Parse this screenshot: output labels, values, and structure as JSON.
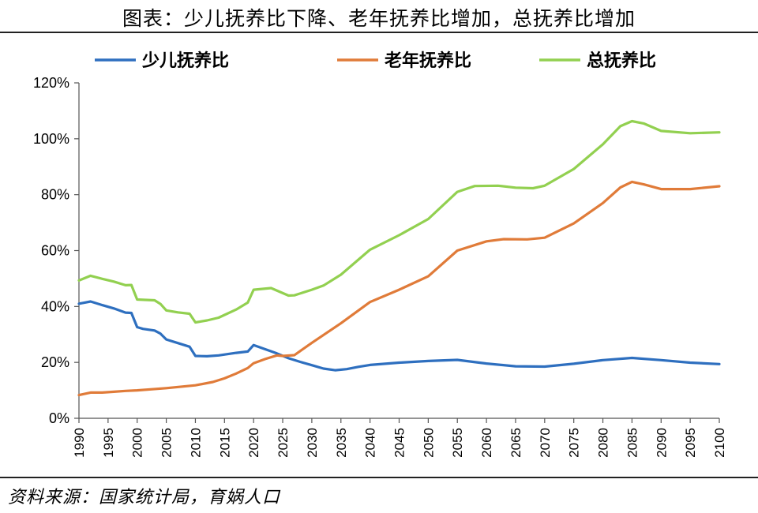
{
  "header": {
    "title": "图表：少儿抚养比下降、老年抚养比增加，总抚养比增加"
  },
  "footer": {
    "source": "资料来源：国家统计局，育娲人口"
  },
  "chart_data": {
    "type": "line",
    "title": "图表：少儿抚养比下降、老年抚养比增加，总抚养比增加",
    "xlabel": "",
    "ylabel": "",
    "xlim": [
      1990,
      2100
    ],
    "ylim": [
      0,
      120
    ],
    "yticks": [
      "0%",
      "20%",
      "40%",
      "60%",
      "80%",
      "100%",
      "120%"
    ],
    "xticks": [
      "1990",
      "1995",
      "2000",
      "2005",
      "2010",
      "2015",
      "2020",
      "2025",
      "2030",
      "2035",
      "2040",
      "2045",
      "2050",
      "2055",
      "2060",
      "2065",
      "2070",
      "2075",
      "2080",
      "2085",
      "2090",
      "2095",
      "2100"
    ],
    "legend_position": "top",
    "grid": false,
    "series": [
      {
        "name": "少儿抚养比",
        "color": "#2E6FBF",
        "points": [
          [
            1990,
            41.0
          ],
          [
            1992,
            41.8
          ],
          [
            1994,
            40.5
          ],
          [
            1996,
            39.3
          ],
          [
            1998,
            37.8
          ],
          [
            1999,
            37.7
          ],
          [
            2000,
            32.6
          ],
          [
            2001,
            32.0
          ],
          [
            2003,
            31.4
          ],
          [
            2004,
            30.3
          ],
          [
            2005,
            28.2
          ],
          [
            2007,
            26.9
          ],
          [
            2009,
            25.6
          ],
          [
            2010,
            22.3
          ],
          [
            2012,
            22.2
          ],
          [
            2014,
            22.5
          ],
          [
            2017,
            23.4
          ],
          [
            2019,
            23.9
          ],
          [
            2020,
            26.2
          ],
          [
            2022,
            24.7
          ],
          [
            2024,
            23.2
          ],
          [
            2026,
            21.5
          ],
          [
            2028,
            20.2
          ],
          [
            2030,
            19.0
          ],
          [
            2032,
            17.8
          ],
          [
            2034,
            17.2
          ],
          [
            2036,
            17.6
          ],
          [
            2038,
            18.4
          ],
          [
            2040,
            19.1
          ],
          [
            2045,
            19.9
          ],
          [
            2050,
            20.5
          ],
          [
            2055,
            20.9
          ],
          [
            2060,
            19.6
          ],
          [
            2065,
            18.6
          ],
          [
            2070,
            18.5
          ],
          [
            2075,
            19.5
          ],
          [
            2080,
            20.8
          ],
          [
            2085,
            21.6
          ],
          [
            2090,
            20.8
          ],
          [
            2095,
            19.9
          ],
          [
            2100,
            19.4
          ]
        ]
      },
      {
        "name": "老年抚养比",
        "color": "#E07B39",
        "points": [
          [
            1990,
            8.3
          ],
          [
            1992,
            9.2
          ],
          [
            1994,
            9.2
          ],
          [
            1996,
            9.5
          ],
          [
            1998,
            9.8
          ],
          [
            2000,
            10.0
          ],
          [
            2005,
            10.8
          ],
          [
            2010,
            11.8
          ],
          [
            2013,
            13.0
          ],
          [
            2015,
            14.3
          ],
          [
            2017,
            16.0
          ],
          [
            2019,
            18.0
          ],
          [
            2020,
            19.7
          ],
          [
            2022,
            21.2
          ],
          [
            2024,
            22.5
          ],
          [
            2025,
            22.3
          ],
          [
            2027,
            22.6
          ],
          [
            2030,
            27.0
          ],
          [
            2035,
            34.0
          ],
          [
            2040,
            41.6
          ],
          [
            2045,
            46.0
          ],
          [
            2050,
            50.8
          ],
          [
            2055,
            60.0
          ],
          [
            2060,
            63.3
          ],
          [
            2063,
            64.1
          ],
          [
            2067,
            64.0
          ],
          [
            2070,
            64.6
          ],
          [
            2075,
            69.7
          ],
          [
            2080,
            77.0
          ],
          [
            2083,
            82.6
          ],
          [
            2085,
            84.6
          ],
          [
            2087,
            83.7
          ],
          [
            2090,
            82.0
          ],
          [
            2095,
            82.0
          ],
          [
            2100,
            83.0
          ]
        ]
      },
      {
        "name": "总抚养比",
        "color": "#92D050",
        "points": [
          [
            1990,
            49.3
          ],
          [
            1992,
            51.0
          ],
          [
            1994,
            49.9
          ],
          [
            1996,
            48.9
          ],
          [
            1998,
            47.6
          ],
          [
            1999,
            47.7
          ],
          [
            2000,
            42.5
          ],
          [
            2003,
            42.2
          ],
          [
            2004,
            40.9
          ],
          [
            2005,
            38.6
          ],
          [
            2007,
            37.9
          ],
          [
            2009,
            37.4
          ],
          [
            2010,
            34.3
          ],
          [
            2012,
            35.0
          ],
          [
            2014,
            36.0
          ],
          [
            2017,
            38.9
          ],
          [
            2019,
            41.4
          ],
          [
            2020,
            46.0
          ],
          [
            2023,
            46.6
          ],
          [
            2026,
            43.9
          ],
          [
            2027,
            44.0
          ],
          [
            2030,
            46.0
          ],
          [
            2032,
            47.5
          ],
          [
            2035,
            51.4
          ],
          [
            2040,
            60.3
          ],
          [
            2045,
            65.5
          ],
          [
            2050,
            71.3
          ],
          [
            2055,
            81.0
          ],
          [
            2058,
            83.1
          ],
          [
            2062,
            83.2
          ],
          [
            2065,
            82.5
          ],
          [
            2068,
            82.3
          ],
          [
            2070,
            83.2
          ],
          [
            2075,
            89.2
          ],
          [
            2080,
            98.0
          ],
          [
            2083,
            104.5
          ],
          [
            2085,
            106.3
          ],
          [
            2087,
            105.5
          ],
          [
            2090,
            102.8
          ],
          [
            2095,
            102.0
          ],
          [
            2100,
            102.3
          ]
        ]
      }
    ]
  }
}
